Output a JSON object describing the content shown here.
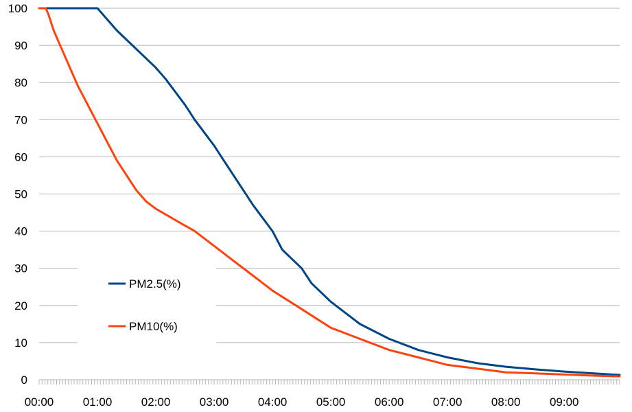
{
  "chart_data": {
    "type": "line",
    "title": "",
    "xlabel": "",
    "ylabel": "",
    "x_unit": "minutes",
    "xlim": [
      0,
      597
    ],
    "ylim": [
      0,
      100
    ],
    "y_ticks": [
      0,
      10,
      20,
      30,
      40,
      50,
      60,
      70,
      80,
      90,
      100
    ],
    "x_tick_labels": [
      "00:00",
      "01:00",
      "02:00",
      "03:00",
      "04:00",
      "05:00",
      "06:00",
      "07:00",
      "08:00",
      "09:00"
    ],
    "grid": "horizontal",
    "legend_placement": "left-center",
    "series": [
      {
        "name": "PM2.5(%)",
        "color": "#004586",
        "x": [
          0,
          30,
          60,
          70,
          80,
          100,
          120,
          130,
          150,
          160,
          180,
          190,
          210,
          220,
          240,
          250,
          270,
          280,
          300,
          330,
          360,
          390,
          420,
          450,
          480,
          510,
          540,
          570,
          597
        ],
        "values": [
          100,
          100,
          100,
          97,
          94,
          89,
          84,
          81,
          74,
          70,
          63,
          59,
          51,
          47,
          40,
          35,
          30,
          26,
          21,
          15,
          11,
          8,
          6,
          4.5,
          3.5,
          2.8,
          2.2,
          1.7,
          1.3
        ]
      },
      {
        "name": "PM10(%)",
        "color": "#ff420e",
        "x": [
          0,
          7,
          10,
          15,
          20,
          30,
          40,
          50,
          60,
          70,
          80,
          90,
          100,
          110,
          120,
          140,
          160,
          180,
          200,
          220,
          240,
          270,
          300,
          330,
          360,
          390,
          420,
          450,
          480,
          510,
          540,
          570,
          597
        ],
        "values": [
          100,
          100,
          98,
          94,
          91,
          85,
          79,
          74,
          69,
          64,
          59,
          55,
          51,
          48,
          46,
          43,
          40,
          36,
          32,
          28,
          24,
          19,
          14,
          11,
          8,
          6,
          4,
          3,
          2,
          1.7,
          1.4,
          1.1,
          0.9
        ]
      }
    ]
  }
}
